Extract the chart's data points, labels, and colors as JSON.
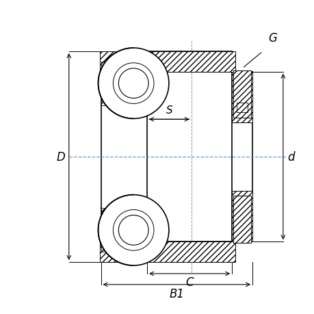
{
  "bg_color": "#ffffff",
  "line_color": "#000000",
  "center_line_color": "#6699cc",
  "labels": {
    "D": "D",
    "d": "d",
    "B1": "B1",
    "C": "C",
    "S": "S",
    "G": "G"
  },
  "figsize": [
    4.6,
    4.6
  ],
  "dpi": 100
}
